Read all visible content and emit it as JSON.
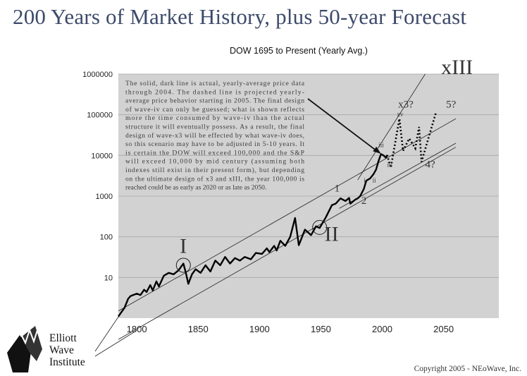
{
  "page": {
    "headline": "200 Years of Market History, plus 50-year Forecast",
    "copyright": "Copyright 2005 - NEoWave, Inc.",
    "logo_text": [
      "Elliott",
      "Wave",
      "Institute"
    ]
  },
  "chart_data": {
    "type": "line",
    "title": "DOW 1695 to Present (Yearly Avg.)",
    "xlabel": "",
    "ylabel": "",
    "y_scale": "log",
    "xlim": [
      1785,
      2095
    ],
    "ylim": [
      1,
      1000000
    ],
    "x_ticks": [
      1800,
      1850,
      1900,
      1950,
      2000,
      2050
    ],
    "y_ticks": [
      10,
      100,
      1000,
      10000,
      100000,
      1000000
    ],
    "x_tick_labels": [
      "1800",
      "1850",
      "1900",
      "1950",
      "2000",
      "2050"
    ],
    "y_tick_labels": [
      "10",
      "100",
      "1000",
      "10000",
      "100000",
      "1000000"
    ],
    "grid": "horizontal",
    "colors": {
      "plot_bg": "#d2d2d2",
      "line": "#000000",
      "text": "#3a3a3a",
      "headline": "#3d4a6b"
    },
    "series": [
      {
        "style": "solid",
        "points": [
          [
            1785,
            1.1
          ],
          [
            1790,
            1.8
          ],
          [
            1793,
            3
          ],
          [
            1795,
            3.5
          ],
          [
            1800,
            4
          ],
          [
            1803,
            3.7
          ],
          [
            1806,
            5
          ],
          [
            1808,
            4.4
          ],
          [
            1811,
            6.5
          ],
          [
            1813,
            4.8
          ],
          [
            1816,
            8
          ],
          [
            1818,
            6
          ],
          [
            1822,
            11
          ],
          [
            1826,
            13
          ],
          [
            1830,
            12
          ],
          [
            1834,
            15
          ],
          [
            1838,
            22
          ],
          [
            1840,
            13
          ],
          [
            1842,
            7
          ],
          [
            1845,
            12
          ],
          [
            1848,
            16
          ],
          [
            1852,
            13
          ],
          [
            1856,
            20
          ],
          [
            1860,
            14
          ],
          [
            1864,
            26
          ],
          [
            1868,
            20
          ],
          [
            1872,
            32
          ],
          [
            1876,
            22
          ],
          [
            1880,
            30
          ],
          [
            1884,
            26
          ],
          [
            1888,
            32
          ],
          [
            1893,
            28
          ],
          [
            1897,
            40
          ],
          [
            1902,
            38
          ],
          [
            1906,
            52
          ],
          [
            1908,
            42
          ],
          [
            1912,
            60
          ],
          [
            1914,
            46
          ],
          [
            1917,
            80
          ],
          [
            1921,
            60
          ],
          [
            1925,
            100
          ],
          [
            1929,
            290
          ],
          [
            1932,
            62
          ],
          [
            1935,
            105
          ],
          [
            1937,
            150
          ],
          [
            1942,
            110
          ],
          [
            1946,
            180
          ],
          [
            1949,
            165
          ],
          [
            1954,
            300
          ],
          [
            1959,
            600
          ],
          [
            1962,
            650
          ],
          [
            1966,
            880
          ],
          [
            1970,
            760
          ],
          [
            1973,
            900
          ],
          [
            1974,
            650
          ],
          [
            1978,
            820
          ],
          [
            1980,
            880
          ],
          [
            1982,
            1000
          ],
          [
            1985,
            1500
          ],
          [
            1987,
            2400
          ],
          [
            1990,
            2700
          ],
          [
            1993,
            3500
          ],
          [
            1995,
            4500
          ],
          [
            1997,
            7300
          ],
          [
            1999,
            10800
          ],
          [
            2001,
            10000
          ],
          [
            2003,
            8800
          ],
          [
            2004,
            10200
          ]
        ]
      },
      {
        "style": "dotted",
        "points": [
          [
            2004,
            10200
          ],
          [
            2007,
            5000
          ],
          [
            2014,
            80000
          ],
          [
            2017,
            13000
          ],
          [
            2022,
            26000
          ],
          [
            2027,
            15000
          ],
          [
            2030,
            50000
          ],
          [
            2032,
            7000
          ],
          [
            2044,
            120000
          ]
        ]
      }
    ],
    "channel_lines": [
      {
        "from": [
          1785,
          1.5
        ],
        "to": [
          2060,
          80000
        ]
      },
      {
        "from": [
          1785,
          0.3
        ],
        "to": [
          2060,
          16000
        ]
      },
      {
        "from": [
          1965,
          500
        ],
        "to": [
          2060,
          20000
        ]
      },
      {
        "from": [
          1980,
          2500
        ],
        "to": [
          2035,
          1000000
        ]
      }
    ],
    "wave_labels": [
      {
        "text": "I",
        "x": 1835,
        "y": 40,
        "size": "large"
      },
      {
        "text": "II",
        "x": 1953,
        "y": 80,
        "size": "large"
      },
      {
        "text": "xIII",
        "x": 2048,
        "y": 1000000,
        "size": "large"
      },
      {
        "text": "1",
        "x": 1961,
        "y": 1300,
        "size": "medium"
      },
      {
        "text": "2",
        "x": 1983,
        "y": 650,
        "size": "medium"
      },
      {
        "text": "x3?",
        "x": 2013,
        "y": 150000,
        "size": "medium"
      },
      {
        "text": "5?",
        "x": 2052,
        "y": 150000,
        "size": "medium"
      },
      {
        "text": "4?",
        "x": 2035,
        "y": 5000,
        "size": "medium"
      },
      {
        "text": "iii",
        "x": 1997,
        "y": 16000,
        "size": "small"
      },
      {
        "text": "i",
        "x": 1985,
        "y": 2200,
        "size": "small"
      },
      {
        "text": "ii",
        "x": 1992,
        "y": 2200,
        "size": "small"
      },
      {
        "text": "iv",
        "x": 2004,
        "y": 5200,
        "size": "small"
      },
      {
        "text": "xv",
        "x": 2012,
        "y": 92000,
        "size": "small"
      }
    ],
    "circled_points": [
      {
        "x": 1838,
        "y": 20
      },
      {
        "x": 1949,
        "y": 170
      }
    ],
    "annotation": {
      "lines": [
        "The solid, dark line is actual, yearly-average price data",
        "through 2004. The dashed line is projected yearly-",
        "average price behavior starting in 2005. The final design",
        "of wave-iv can only be guessed; what is shown reflects",
        "more the time consumed by wave-iv than the actual",
        "structure it will eventually possess. As a result, the final",
        "design of wave-x3 will be effected by what wave-iv does,",
        "so this scenario may have to be adjusted in 5-10 years. It",
        "is certain the DOW will exceed 100,000 and the S&P",
        "will exceed 10,000 by mid century (assuming both",
        "indexes still exist in their present form), but depending",
        "on the ultimate design of x3 and xIII, the year 100,000 is",
        "reached could be as early as 2020 or as late as 2050."
      ],
      "arrow_to": {
        "x": 1999,
        "y": 11000
      }
    }
  }
}
